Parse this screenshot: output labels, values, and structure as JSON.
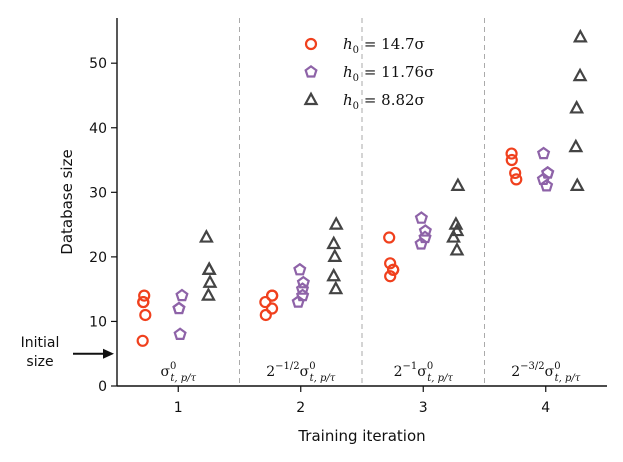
{
  "chart_data": {
    "type": "scatter",
    "xlabel": "Training iteration",
    "ylabel": "Database size",
    "xlim": [
      0.5,
      4.5
    ],
    "ylim": [
      0,
      57
    ],
    "x_ticks": [
      1,
      2,
      3,
      4
    ],
    "y_ticks": [
      0,
      10,
      20,
      30,
      40,
      50
    ],
    "grid": false,
    "legend_position": "top-center",
    "iteration_dividers": [
      1.5,
      2.5,
      3.5
    ],
    "series": [
      {
        "name": "h0 = 14.7σ",
        "legend_math": {
          "symbol": "h",
          "sub": "0",
          "rest": " = 14.7σ"
        },
        "marker": "circle",
        "color": "#f0401d",
        "offset": -0.26,
        "points": [
          [
            1,
            14
          ],
          [
            1,
            13
          ],
          [
            1,
            13
          ],
          [
            1,
            11
          ],
          [
            1,
            7
          ],
          [
            2,
            14
          ],
          [
            2,
            14
          ],
          [
            2,
            13
          ],
          [
            2,
            12
          ],
          [
            2,
            11
          ],
          [
            3,
            23
          ],
          [
            3,
            19
          ],
          [
            3,
            18
          ],
          [
            3,
            18
          ],
          [
            3,
            17
          ],
          [
            4,
            36
          ],
          [
            4,
            35
          ],
          [
            4,
            33
          ],
          [
            4,
            32
          ]
        ]
      },
      {
        "name": "h0 = 11.76σ",
        "legend_math": {
          "symbol": "h",
          "sub": "0",
          "rest": " = 11.76σ"
        },
        "marker": "pentagon",
        "color": "#8e63a8",
        "offset": 0.0,
        "points": [
          [
            1,
            14
          ],
          [
            1,
            12
          ],
          [
            1,
            12
          ],
          [
            1,
            8
          ],
          [
            2,
            18
          ],
          [
            2,
            16
          ],
          [
            2,
            15
          ],
          [
            2,
            14
          ],
          [
            2,
            13
          ],
          [
            3,
            26
          ],
          [
            3,
            24
          ],
          [
            3,
            23
          ],
          [
            3,
            22
          ],
          [
            4,
            36
          ],
          [
            4,
            33
          ],
          [
            4,
            33
          ],
          [
            4,
            32
          ],
          [
            4,
            31
          ]
        ]
      },
      {
        "name": "h0 = 8.82σ",
        "legend_math": {
          "symbol": "h",
          "sub": "0",
          "rest": " = 8.82σ"
        },
        "marker": "triangle",
        "color": "#444444",
        "offset": 0.26,
        "points": [
          [
            1,
            23
          ],
          [
            1,
            18
          ],
          [
            1,
            18
          ],
          [
            1,
            16
          ],
          [
            1,
            14
          ],
          [
            2,
            25
          ],
          [
            2,
            22
          ],
          [
            2,
            20
          ],
          [
            2,
            17
          ],
          [
            2,
            15
          ],
          [
            3,
            31
          ],
          [
            3,
            25
          ],
          [
            3,
            24
          ],
          [
            3,
            23
          ],
          [
            3,
            21
          ],
          [
            4,
            54
          ],
          [
            4,
            48
          ],
          [
            4,
            43
          ],
          [
            4,
            37
          ],
          [
            4,
            31
          ]
        ]
      }
    ],
    "iteration_labels": [
      {
        "x": 1,
        "prefix": "",
        "exp": ""
      },
      {
        "x": 2,
        "prefix": "2",
        "exp": "−1/2"
      },
      {
        "x": 3,
        "prefix": "2",
        "exp": "−1"
      },
      {
        "x": 4,
        "prefix": "2",
        "exp": "−3/2"
      }
    ],
    "sigma_label": {
      "base": "σ",
      "sup": "0",
      "sub": "t, p/τ"
    },
    "annotation": {
      "line1": "Initial",
      "line2": "size",
      "points_to_y": 5
    }
  }
}
